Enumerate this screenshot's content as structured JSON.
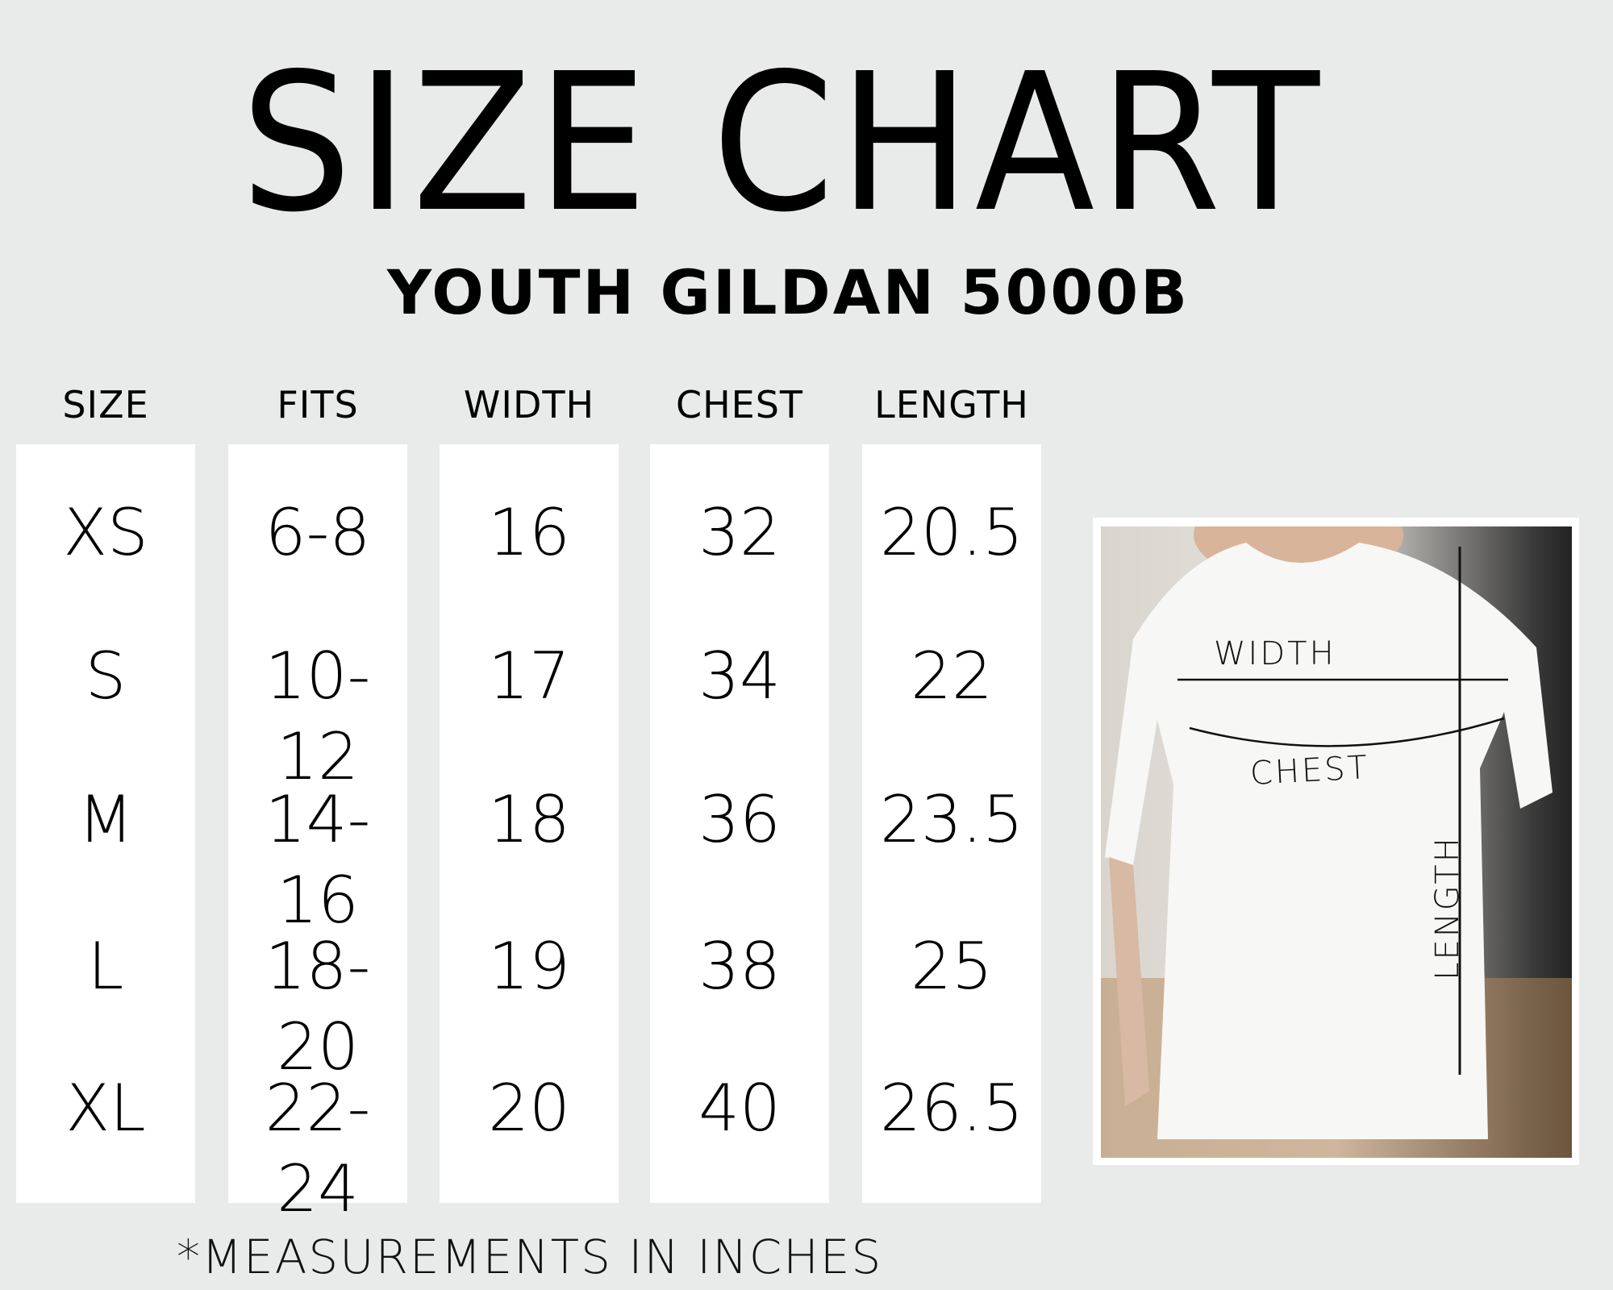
{
  "title": "SIZE CHART",
  "subtitle": "YOUTH GILDAN 5000B",
  "table": {
    "headers": [
      "SIZE",
      "FITS",
      "WIDTH",
      "CHEST",
      "LENGTH"
    ],
    "rows": [
      [
        "XS",
        "6-8",
        "16",
        "32",
        "20.5"
      ],
      [
        "S",
        "10-12",
        "17",
        "34",
        "22"
      ],
      [
        "M",
        "14-16",
        "18",
        "36",
        "23.5"
      ],
      [
        "L",
        "18-20",
        "19",
        "38",
        "25"
      ],
      [
        "XL",
        "22-24",
        "20",
        "40",
        "26.5"
      ]
    ]
  },
  "footer": "*MEASUREMENTS  IN INCHES",
  "photo": {
    "labels": {
      "width": "WIDTH",
      "chest": "CHEST",
      "length": "LENGTH"
    }
  },
  "colors": {
    "background": "#e8ebea",
    "column": "#ffffff",
    "text": "#000000"
  }
}
